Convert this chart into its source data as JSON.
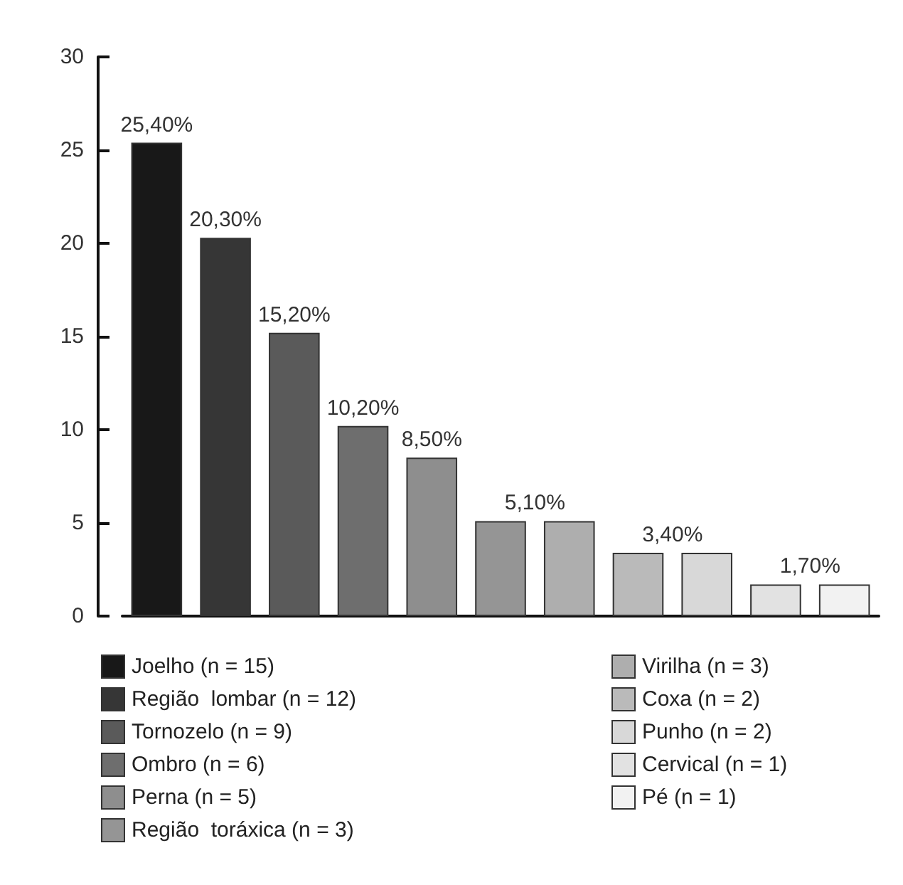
{
  "chart_data": {
    "type": "bar",
    "categories": [
      null,
      null,
      null,
      null,
      null,
      null,
      null,
      null,
      null,
      null,
      null
    ],
    "series": [
      {
        "name": "Joelho (n = 15)",
        "color": "#181818",
        "values": [
          25.4,
          null,
          null,
          null,
          null,
          null,
          null,
          null,
          null,
          null,
          null
        ],
        "value_labels": [
          "25,40%",
          null,
          null,
          null,
          null,
          null,
          null,
          null,
          null,
          null,
          null
        ]
      },
      {
        "name": "Região  lombar (n = 12)",
        "color": "#363636",
        "values": [
          null,
          20.3,
          null,
          null,
          null,
          null,
          null,
          null,
          null,
          null,
          null
        ],
        "value_labels": [
          null,
          "20,30%",
          null,
          null,
          null,
          null,
          null,
          null,
          null,
          null,
          null
        ]
      },
      {
        "name": "Tornozelo (n = 9)",
        "color": "#5a5a5a",
        "values": [
          null,
          null,
          15.2,
          null,
          null,
          null,
          null,
          null,
          null,
          null,
          null
        ],
        "value_labels": [
          null,
          null,
          "15,20%",
          null,
          null,
          null,
          null,
          null,
          null,
          null,
          null
        ]
      },
      {
        "name": "Ombro (n = 6)",
        "color": "#6e6e6e",
        "values": [
          null,
          null,
          null,
          10.2,
          null,
          null,
          null,
          null,
          null,
          null,
          null
        ],
        "value_labels": [
          null,
          null,
          null,
          "10,20%",
          null,
          null,
          null,
          null,
          null,
          null,
          null
        ]
      },
      {
        "name": "Perna (n = 5)",
        "color": "#8e8e8e",
        "values": [
          null,
          null,
          null,
          null,
          8.5,
          null,
          null,
          null,
          null,
          null,
          null
        ],
        "value_labels": [
          null,
          null,
          null,
          null,
          "8,50%",
          null,
          null,
          null,
          null,
          null,
          null
        ]
      },
      {
        "name": "Região  toráxica (n = 3)",
        "color": "#959595",
        "values": [
          null,
          null,
          null,
          null,
          null,
          5.1,
          null,
          null,
          null,
          null,
          null
        ],
        "value_labels": [
          null,
          null,
          null,
          null,
          null,
          "5,10%",
          null,
          null,
          null,
          null,
          null
        ]
      },
      {
        "name": "Virilha (n = 3)",
        "color": "#aeaeae",
        "values": [
          null,
          null,
          null,
          null,
          null,
          null,
          5.1,
          null,
          null,
          null,
          null
        ]
      },
      {
        "name": "Coxa (n = 2)",
        "color": "#bababa",
        "values": [
          null,
          null,
          null,
          null,
          null,
          null,
          null,
          3.4,
          null,
          null,
          null
        ],
        "value_labels": [
          null,
          null,
          null,
          null,
          null,
          null,
          null,
          "3,40%",
          null,
          null,
          null
        ]
      },
      {
        "name": "Punho (n = 2)",
        "color": "#d8d8d8",
        "values": [
          null,
          null,
          null,
          null,
          null,
          null,
          null,
          null,
          3.4,
          null,
          null
        ]
      },
      {
        "name": "Cervical (n = 1)",
        "color": "#e2e2e2",
        "values": [
          null,
          null,
          null,
          null,
          null,
          null,
          null,
          null,
          null,
          1.7,
          null
        ],
        "value_labels": [
          null,
          null,
          null,
          null,
          null,
          null,
          null,
          null,
          null,
          "1,70%",
          null
        ]
      },
      {
        "name": "Pé (n = 1)",
        "color": "#f2f2f2",
        "values": [
          null,
          null,
          null,
          null,
          null,
          null,
          null,
          null,
          null,
          null,
          1.7
        ]
      }
    ],
    "ylim": [
      0,
      30
    ],
    "yticks": [
      0,
      5,
      10,
      15,
      20,
      25,
      30
    ],
    "grid": false,
    "legend": "bottom"
  }
}
